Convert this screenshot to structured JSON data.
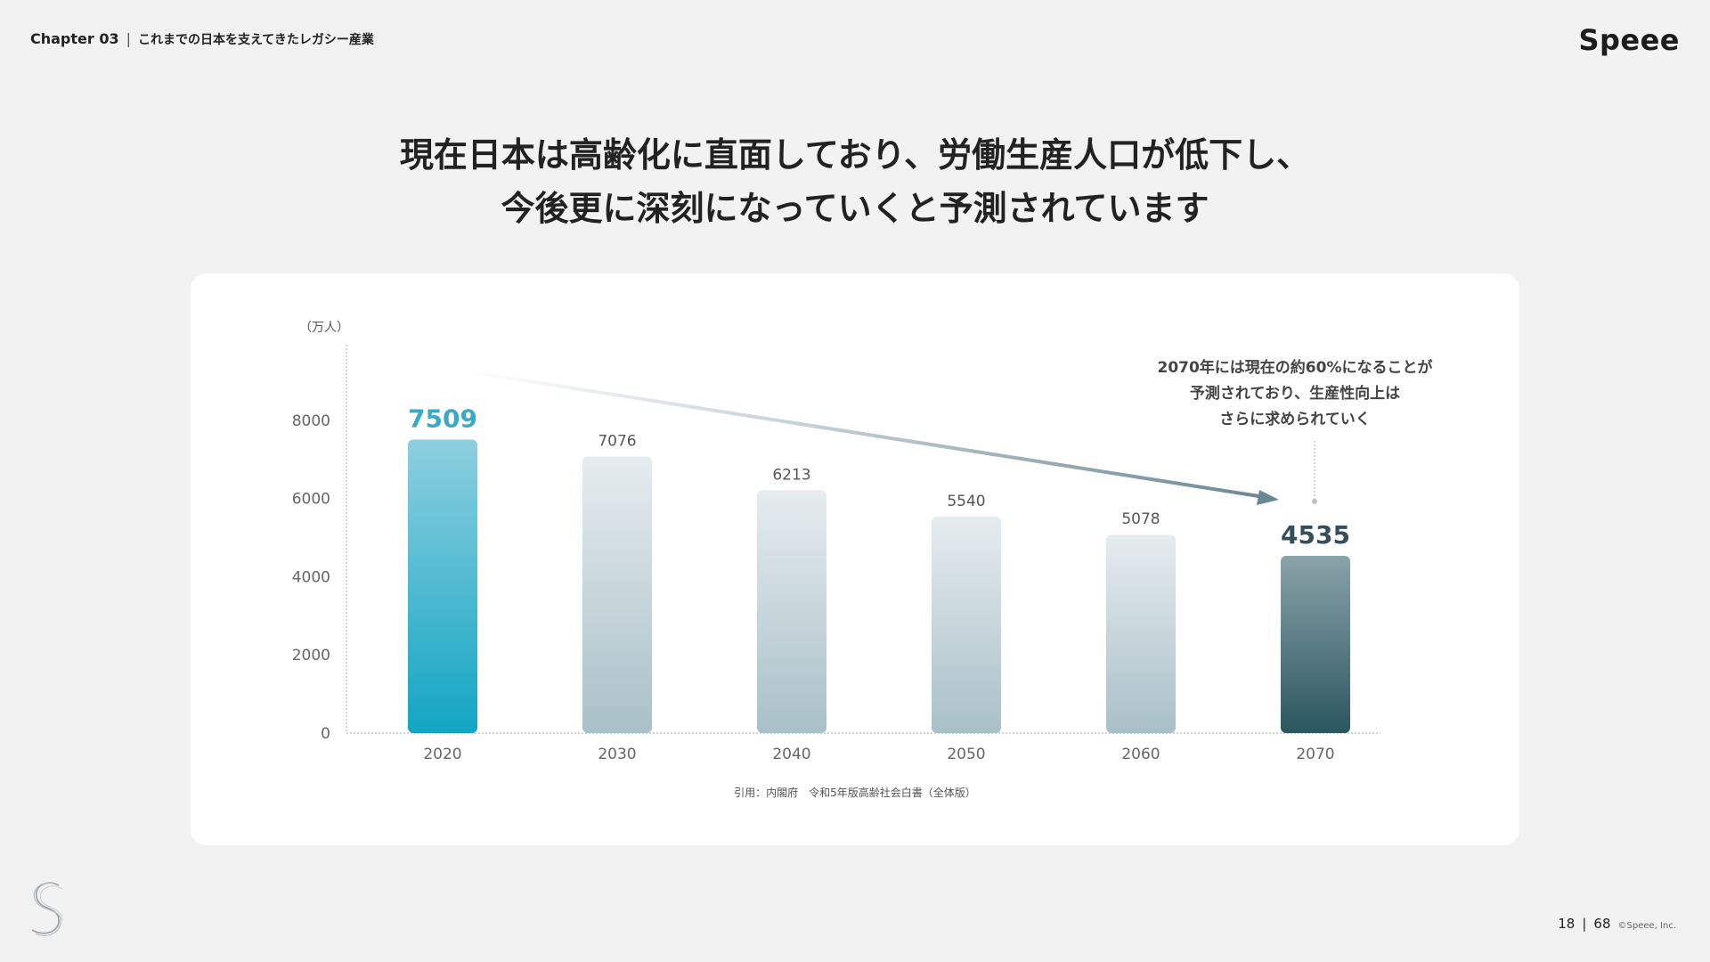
{
  "header": {
    "chapter": "Chapter 03",
    "separator": "|",
    "subtitle": "これまでの日本を支えてきたレガシー産業"
  },
  "brand": "Speee",
  "headline": {
    "line1": "現在日本は高齢化に直面しており、労働生産人口が低下し、",
    "line2": "今後更に深刻になっていくと予測されています"
  },
  "chart_data": {
    "type": "bar",
    "categories": [
      "2020",
      "2030",
      "2040",
      "2050",
      "2060",
      "2070"
    ],
    "values": [
      7509,
      7076,
      6213,
      5540,
      5078,
      4535
    ],
    "ylabel": "（万人）",
    "yticks": [
      0,
      2000,
      4000,
      6000,
      8000
    ],
    "ylim": [
      0,
      9800
    ],
    "grid": false,
    "annotation": [
      "2070年には現在の約60%になることが",
      "予測されており、生産性向上は",
      "さらに求められていく"
    ],
    "source": "引用：内閣府　令和5年版高齢社会白書（全体版）"
  },
  "colors": {
    "highlight_start": "#8ecfdf",
    "highlight_end": "#12a5c3",
    "bar_start": "#e6ecef",
    "bar_end": "#a9c0c8",
    "final_start": "#8aa3a9",
    "final_end": "#2b5660",
    "label_highlight": "#3aa9c6",
    "label_final": "#344f5b"
  },
  "footer": {
    "page": "18",
    "separator": "|",
    "total": "68",
    "copyright": "©Speee, Inc."
  }
}
